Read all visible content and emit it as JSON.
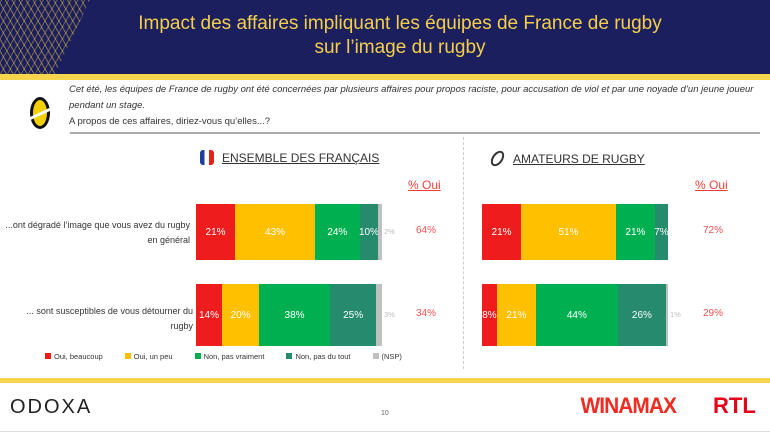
{
  "header": {
    "title_line1": "Impact des affaires impliquant les équipes de France de rugby",
    "title_line2": "sur l’image du rugby"
  },
  "question": {
    "context": "Cet été, les équipes de France de rugby ont été concernées par plusieurs affaires pour propos raciste, pour accusation de viol et par une noyade d’un jeune joueur pendant un stage.",
    "prompt": "A propos de ces affaires, diriez-vous qu’elles...?"
  },
  "colors": {
    "Oui, beaucoup": "#ee1c1c",
    "Oui, un peu": "#ffc000",
    "Non, pas vraiment": "#00b050",
    "Non, pas du tout": "#268a6e",
    "(NSP)": "#c0c0c0"
  },
  "chart_data": {
    "type": "bar",
    "stacked": true,
    "orientation": "horizontal",
    "categories": [
      "...ont dégradé l’image que vous avez du rugby en général",
      "... sont susceptibles de vous détourner du rugby"
    ],
    "legend": [
      "Oui, beaucoup",
      "Oui, un peu",
      "Non, pas vraiment",
      "Non, pas du tout",
      "(NSP)"
    ],
    "legend_position": "bottom",
    "total_label": "% Oui",
    "panels": [
      {
        "title": "ENSEMBLE DES FRANÇAIS",
        "rows": [
          [
            21,
            43,
            24,
            10,
            2
          ],
          [
            14,
            20,
            38,
            25,
            3
          ]
        ],
        "totals": [
          "64%",
          "34%"
        ]
      },
      {
        "title": "AMATEURS DE RUGBY",
        "rows": [
          [
            21,
            51,
            21,
            7,
            0
          ],
          [
            8,
            21,
            44,
            26,
            1
          ]
        ],
        "totals": [
          "72%",
          "29%"
        ]
      }
    ]
  },
  "footer": {
    "logo": "ODOXA",
    "page": "10",
    "partner1": "WINAMAX",
    "partner2": "RTL"
  }
}
